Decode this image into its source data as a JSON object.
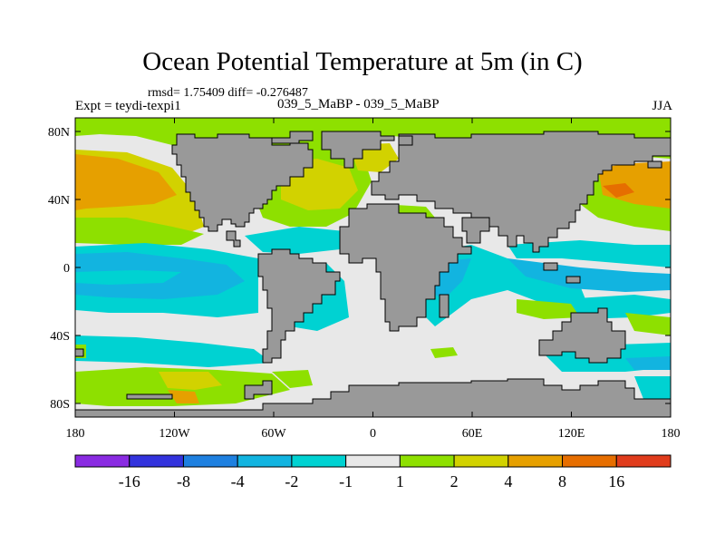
{
  "header": {
    "title": "Ocean Potential Temperature at 5m (in C)",
    "stats": "rmsd= 1.75409 diff= -0.276487",
    "expt": "Expt = teydi-texpi1",
    "center_label": "039_5_MaBP - 039_5_MaBP",
    "season": "JJA"
  },
  "map": {
    "lon_range": [
      -180,
      180
    ],
    "lat_range": [
      -90,
      90
    ],
    "x_ticks": [
      {
        "value": -180,
        "label": "180"
      },
      {
        "value": -120,
        "label": "120W"
      },
      {
        "value": -60,
        "label": "60W"
      },
      {
        "value": 0,
        "label": "0"
      },
      {
        "value": 60,
        "label": "60E"
      },
      {
        "value": 120,
        "label": "120E"
      },
      {
        "value": 180,
        "label": "180"
      }
    ],
    "y_ticks": [
      {
        "value": 80,
        "label": "80N"
      },
      {
        "value": 40,
        "label": "40N"
      },
      {
        "value": 0,
        "label": "0"
      },
      {
        "value": -40,
        "label": "40S"
      },
      {
        "value": -80,
        "label": "80S"
      }
    ],
    "land_color": "#999999",
    "colors": {
      "c_m16": "#8a2be2",
      "c_m8": "#3333dd",
      "c_m4": "#1e80e0",
      "c_m2": "#12b4e0",
      "c_m1": "#00d2d2",
      "c_0": "#e8e8e8",
      "c_1": "#8ee000",
      "c_2": "#d2d200",
      "c_4": "#e6a000",
      "c_8": "#e66e00",
      "c_16": "#e03c1c"
    }
  },
  "colorbar": {
    "colors": [
      "#8a2be2",
      "#3333dd",
      "#1e80e0",
      "#12b4e0",
      "#00d2d2",
      "#e8e8e8",
      "#8ee000",
      "#d2d200",
      "#e6a000",
      "#e66e00",
      "#e03c1c"
    ],
    "labels": [
      "-16",
      "-8",
      "-4",
      "-2",
      "-1",
      "1",
      "2",
      "4",
      "8",
      "16"
    ]
  }
}
